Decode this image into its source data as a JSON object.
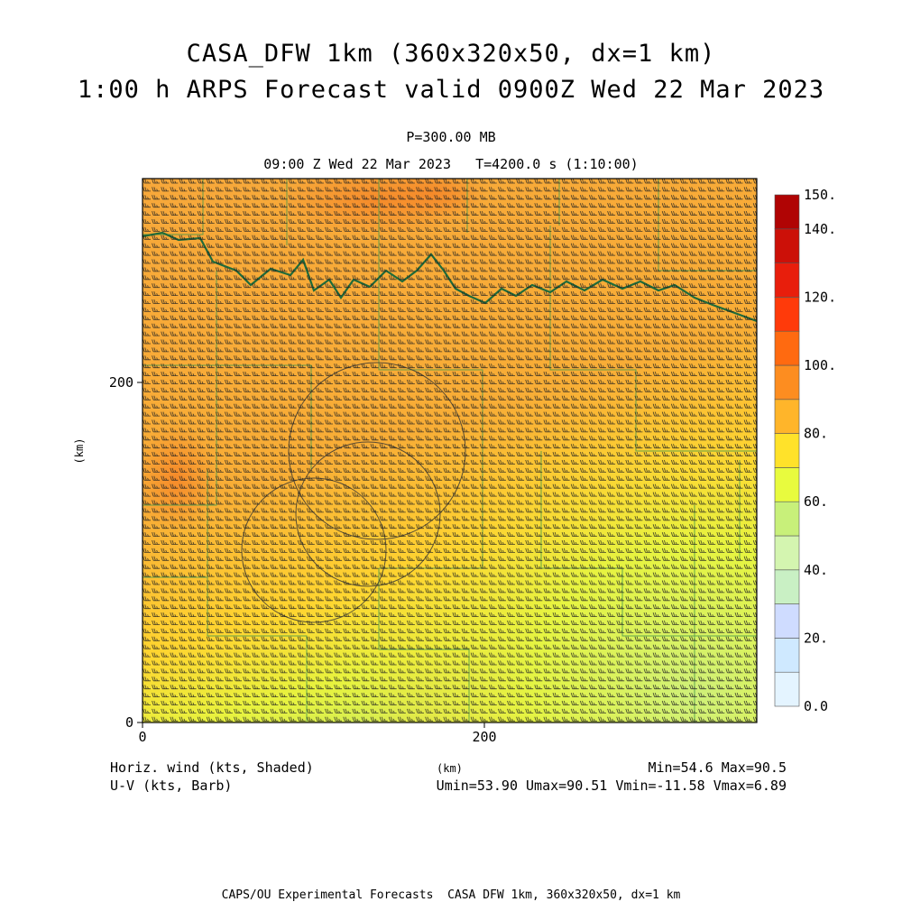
{
  "header": {
    "title_line1": "CASA_DFW 1km (360x320x50, dx=1 km)",
    "title_line2": "1:00 h ARPS Forecast valid 0900Z Wed 22 Mar 2023",
    "level": "P=300.00 MB",
    "time": "09:00 Z Wed 22 Mar 2023   T=4200.0 s (1:10:00)"
  },
  "chart_data": {
    "type": "heatmap",
    "x_ticks": [
      "0",
      "200"
    ],
    "y_ticks": [
      "0",
      "200"
    ],
    "xlabel": "(km)",
    "ylabel": "(km)",
    "xlim": [
      0,
      360
    ],
    "ylim": [
      0,
      320
    ],
    "field_range": {
      "min": 54.6,
      "max": 90.5
    },
    "colorbar": {
      "levels": [
        0,
        10,
        20,
        30,
        40,
        50,
        60,
        70,
        80,
        90,
        100,
        110,
        120,
        130,
        140,
        150
      ],
      "tick_labels": [
        "0.0",
        "20.",
        "40.",
        "60.",
        "80.",
        "100.",
        "120.",
        "140.",
        "150."
      ],
      "colors": [
        "#e4f4ff",
        "#cfe9ff",
        "#cfdcff",
        "#c9f0c4",
        "#d4f5b0",
        "#c8f07a",
        "#e8fb3e",
        "#ffe22a",
        "#ffb52a",
        "#fd8d20",
        "#ff6a10",
        "#ff3a0a",
        "#e81e0c",
        "#cc1008",
        "#b00404"
      ]
    }
  },
  "footer": {
    "left1": "Horiz. wind (kts, Shaded)",
    "left2": "U-V (kts, Barb)",
    "center": "(km)",
    "right1": "Min=54.6 Max=90.5",
    "right2": "Umin=53.90 Umax=90.51 Vmin=-11.58 Vmax=6.89",
    "credit": "CAPS/OU Experimental Forecasts  CASA DFW 1km, 360x320x50, dx=1 km"
  }
}
